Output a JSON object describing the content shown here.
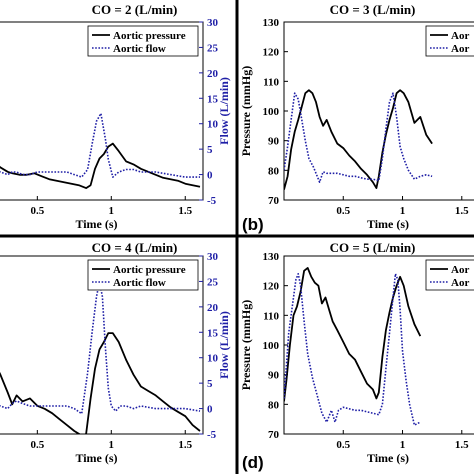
{
  "colors": {
    "pressure": "#000000",
    "flow": "#1f1fa6",
    "right_axis": "#1f1fa6",
    "divider": "#000000"
  },
  "chart_data": [
    {
      "type": "line",
      "panel_label": "",
      "title": "CO = 2 (L/min)",
      "xlabel": "Time (s)",
      "ylabel": "",
      "ylabel_right": "Flow (L/min)",
      "xlim": [
        0.18,
        1.62
      ],
      "ylim": [
        70,
        130
      ],
      "ylim_right": [
        -5,
        30
      ],
      "xticks": [
        "0.5",
        "1",
        "1.5"
      ],
      "yticks": [],
      "yticks_right": [
        "-5",
        "0",
        "5",
        "10",
        "15",
        "20",
        "25",
        "30"
      ],
      "legend": [
        "Aortic pressure",
        "Aortic flow"
      ],
      "legend_position": "top-right",
      "series": [
        {
          "name": "Aortic pressure",
          "axis": "left",
          "x": [
            0.2,
            0.25,
            0.3,
            0.33,
            0.38,
            0.43,
            0.48,
            0.53,
            0.58,
            0.63,
            0.68,
            0.73,
            0.78,
            0.83,
            0.86,
            0.89,
            0.92,
            0.95,
            0.98,
            1.01,
            1.05,
            1.1,
            1.15,
            1.2,
            1.25,
            1.3,
            1.35,
            1.4,
            1.45,
            1.5,
            1.55,
            1.6
          ],
          "y": [
            83,
            81,
            79.5,
            79,
            78.5,
            78.5,
            79,
            78,
            77,
            76.5,
            76,
            75.5,
            75,
            74,
            75,
            80.5,
            84,
            85.5,
            88,
            89,
            86.5,
            83,
            82,
            80.5,
            79.5,
            78.5,
            77.5,
            77,
            76.5,
            75.5,
            75,
            74.5
          ]
        },
        {
          "name": "Aortic flow",
          "axis": "right",
          "x": [
            0.2,
            0.25,
            0.3,
            0.33,
            0.36,
            0.4,
            0.45,
            0.5,
            0.55,
            0.6,
            0.65,
            0.7,
            0.75,
            0.8,
            0.84,
            0.87,
            0.9,
            0.93,
            0.96,
            0.98,
            1.01,
            1.05,
            1.1,
            1.15,
            1.2,
            1.3,
            1.4,
            1.5,
            1.6
          ],
          "y": [
            1,
            0.5,
            0,
            0.5,
            0.5,
            0,
            0,
            0.5,
            0.5,
            0.5,
            0.5,
            0.5,
            0,
            -0.5,
            1,
            6,
            10.5,
            12,
            7,
            3,
            -0.5,
            0.5,
            1,
            1,
            0.5,
            0.5,
            0,
            -0.5,
            -0.5
          ]
        }
      ]
    },
    {
      "type": "line",
      "panel_label": "(b)",
      "title": "CO = 3 (L/min)",
      "xlabel": "Time (s)",
      "ylabel": "Pressure (mmHg)",
      "xlim": [
        0,
        1.62
      ],
      "ylim": [
        70,
        130
      ],
      "xticks": [
        "0.5",
        "1",
        "1.5"
      ],
      "yticks": [
        "70",
        "80",
        "90",
        "100",
        "110",
        "120",
        "130"
      ],
      "legend": [
        "Aortic pressure",
        "Aortic flow"
      ],
      "legend_visible_text": [
        "Aor",
        "Aor"
      ],
      "legend_position": "top-right",
      "series": [
        {
          "name": "Aortic pressure",
          "axis": "left",
          "x": [
            0,
            0.03,
            0.06,
            0.09,
            0.12,
            0.15,
            0.18,
            0.21,
            0.24,
            0.27,
            0.3,
            0.33,
            0.36,
            0.4,
            0.45,
            0.5,
            0.55,
            0.6,
            0.65,
            0.7,
            0.75,
            0.78,
            0.8,
            0.83,
            0.86,
            0.89,
            0.92,
            0.95,
            0.98,
            1.01,
            1.05,
            1.1,
            1.15,
            1.2,
            1.25
          ],
          "y": [
            73.5,
            78,
            87,
            93,
            97,
            101.5,
            106,
            107,
            106,
            103,
            98,
            95,
            97,
            93,
            89,
            87.5,
            85,
            83,
            80.5,
            78.5,
            76,
            74,
            78,
            86,
            92,
            97,
            101,
            106,
            107,
            106,
            103,
            96,
            98,
            92,
            89
          ]
        },
        {
          "name": "Aortic flow",
          "axis": "left",
          "x": [
            0,
            0.03,
            0.06,
            0.09,
            0.12,
            0.15,
            0.18,
            0.21,
            0.25,
            0.3,
            0.33,
            0.36,
            0.4,
            0.45,
            0.5,
            0.55,
            0.6,
            0.65,
            0.7,
            0.75,
            0.8,
            0.83,
            0.86,
            0.89,
            0.92,
            0.95,
            0.98,
            1.01,
            1.05,
            1.1,
            1.15,
            1.2,
            1.25
          ],
          "y": [
            80,
            88,
            97,
            106,
            104,
            97,
            90,
            84,
            81,
            76,
            79.5,
            79,
            79,
            79,
            78.5,
            78,
            78,
            77.5,
            77,
            77,
            76.5,
            84,
            94,
            103,
            106,
            98,
            88,
            84,
            80,
            77,
            78,
            78.5,
            78
          ]
        }
      ]
    },
    {
      "type": "line",
      "panel_label": "",
      "title": "CO = 4 (L/min)",
      "xlabel": "Time (s)",
      "ylabel": "",
      "ylabel_right": "Flow (L/min)",
      "xlim": [
        0.18,
        1.62
      ],
      "ylim": [
        70,
        130
      ],
      "ylim_right": [
        -5,
        30
      ],
      "xticks": [
        "0.5",
        "1",
        "1.5"
      ],
      "yticks": [],
      "yticks_right": [
        "-5",
        "0",
        "5",
        "10",
        "15",
        "20",
        "25",
        "30"
      ],
      "legend": [
        "Aortic pressure",
        "Aortic flow"
      ],
      "legend_position": "top-right",
      "series": [
        {
          "name": "Aortic pressure",
          "axis": "left",
          "x": [
            0.2,
            0.25,
            0.3,
            0.33,
            0.36,
            0.4,
            0.45,
            0.5,
            0.55,
            0.6,
            0.65,
            0.7,
            0.75,
            0.8,
            0.83,
            0.86,
            0.89,
            0.92,
            0.95,
            0.98,
            1.01,
            1.05,
            1.1,
            1.15,
            1.2,
            1.25,
            1.3,
            1.35,
            1.4,
            1.45,
            1.5,
            1.55,
            1.6
          ],
          "y": [
            95,
            90,
            84,
            80,
            83,
            81,
            82,
            79.5,
            78.5,
            77,
            75,
            73,
            71,
            69.5,
            70,
            82,
            92,
            98.5,
            101,
            104,
            104,
            101,
            95,
            90,
            86,
            84.5,
            83,
            81,
            79,
            77.5,
            76,
            73,
            71
          ]
        },
        {
          "name": "Aortic flow",
          "axis": "right",
          "x": [
            0.2,
            0.25,
            0.3,
            0.33,
            0.36,
            0.4,
            0.45,
            0.5,
            0.55,
            0.6,
            0.65,
            0.7,
            0.75,
            0.8,
            0.84,
            0.87,
            0.9,
            0.92,
            0.94,
            0.96,
            0.98,
            1.0,
            1.03,
            1.06,
            1.1,
            1.15,
            1.2,
            1.3,
            1.4,
            1.5,
            1.6
          ],
          "y": [
            1,
            0.5,
            0,
            1,
            1.5,
            1,
            0.5,
            0.5,
            0.5,
            0.5,
            0.5,
            0.5,
            0,
            -1,
            7,
            15,
            22,
            25,
            22,
            12,
            4,
            0.5,
            -0.5,
            0.5,
            0.5,
            0,
            0.5,
            0,
            0,
            0,
            -0.5
          ]
        }
      ]
    },
    {
      "type": "line",
      "panel_label": "(d)",
      "title": "CO = 5 (L/min)",
      "xlabel": "Time (s)",
      "ylabel": "Pressure (mmHg)",
      "xlim": [
        0,
        1.62
      ],
      "ylim": [
        70,
        130
      ],
      "xticks": [
        "0.5",
        "1",
        "1.5"
      ],
      "yticks": [
        "70",
        "80",
        "90",
        "100",
        "110",
        "120",
        "130"
      ],
      "legend": [
        "Aortic pressure",
        "Aortic flow"
      ],
      "legend_visible_text": [
        "Aor",
        "Aor"
      ],
      "legend_position": "top-right",
      "series": [
        {
          "name": "Aortic pressure",
          "axis": "left",
          "x": [
            0,
            0.02,
            0.05,
            0.08,
            0.11,
            0.14,
            0.17,
            0.2,
            0.23,
            0.26,
            0.29,
            0.32,
            0.35,
            0.38,
            0.41,
            0.45,
            0.5,
            0.55,
            0.6,
            0.65,
            0.7,
            0.75,
            0.78,
            0.8,
            0.83,
            0.86,
            0.89,
            0.92,
            0.95,
            0.98,
            1.01,
            1.05,
            1.1,
            1.15
          ],
          "y": [
            81,
            88,
            100,
            110,
            113,
            118,
            125,
            126,
            123,
            121,
            120,
            114,
            116,
            112,
            108,
            105,
            101,
            97,
            95,
            91,
            87,
            85,
            82,
            84,
            96,
            105,
            111,
            116,
            120,
            123,
            120,
            113,
            107,
            103
          ]
        },
        {
          "name": "Aortic flow",
          "axis": "left",
          "x": [
            0,
            0.02,
            0.04,
            0.07,
            0.1,
            0.12,
            0.14,
            0.17,
            0.2,
            0.24,
            0.28,
            0.32,
            0.36,
            0.4,
            0.43,
            0.46,
            0.5,
            0.55,
            0.6,
            0.65,
            0.7,
            0.75,
            0.8,
            0.83,
            0.86,
            0.89,
            0.92,
            0.94,
            0.96,
            0.98,
            1.0,
            1.03,
            1.06,
            1.1,
            1.15
          ],
          "y": [
            82,
            93,
            104,
            113,
            122,
            124,
            120,
            108,
            97,
            89,
            83,
            77,
            74,
            78,
            74,
            78,
            79,
            78.5,
            78,
            78,
            77.5,
            77,
            76.5,
            80,
            92,
            104,
            116,
            124,
            122,
            112,
            98,
            88,
            80,
            73,
            74
          ]
        }
      ]
    }
  ]
}
